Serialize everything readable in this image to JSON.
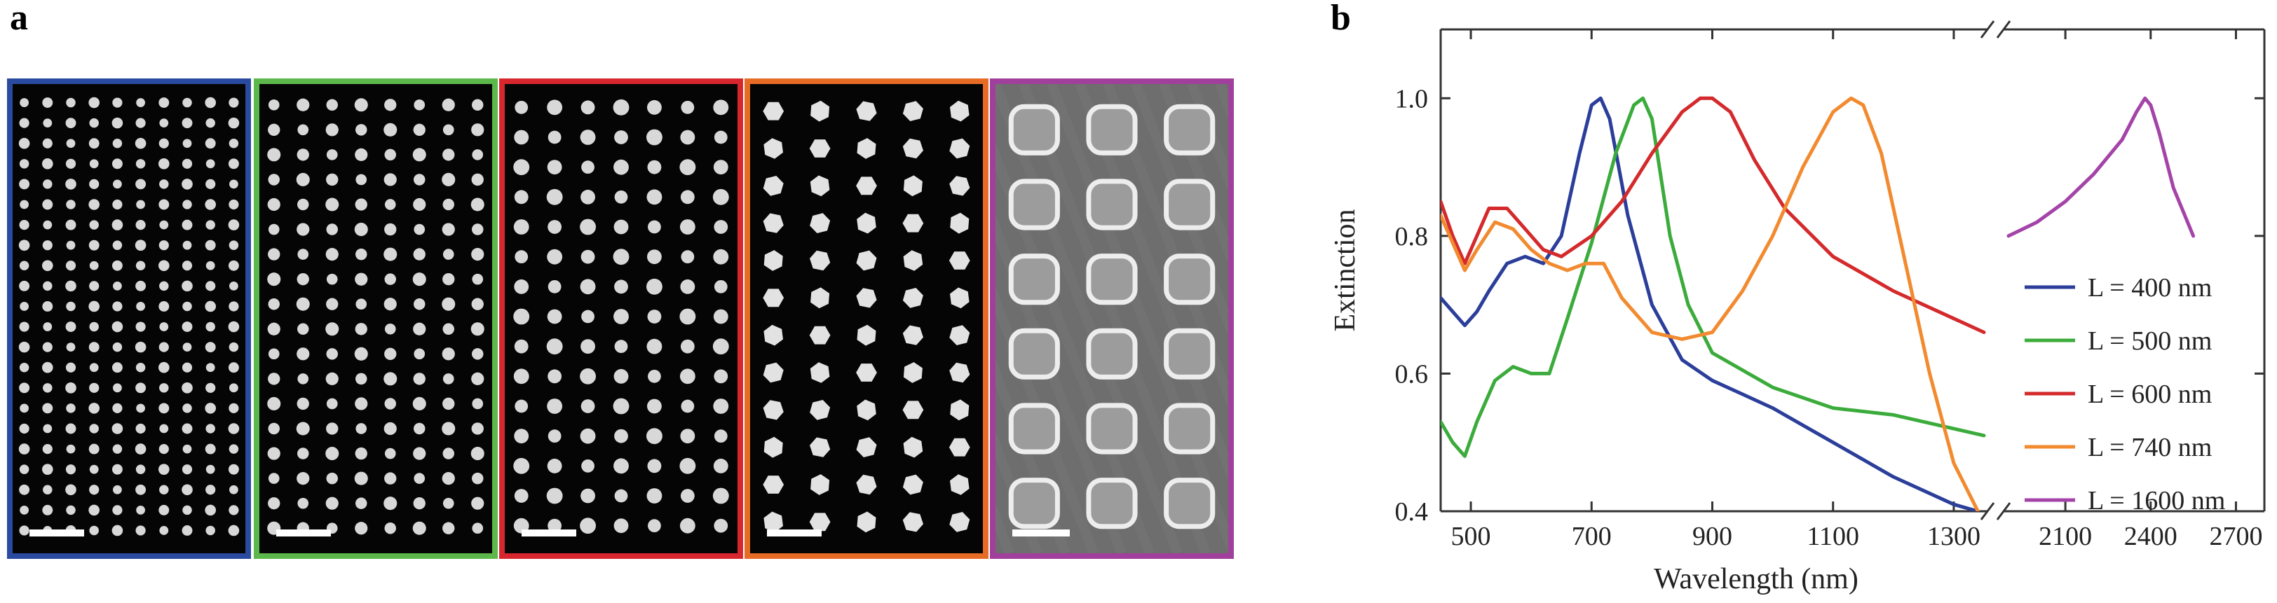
{
  "panel_labels": {
    "a": "a",
    "b": "b"
  },
  "sem_panels": [
    {
      "id": "L400",
      "border_color": "#2a4aa0",
      "rows": 22,
      "cols": 10,
      "particle_shape": "dot",
      "background": "black"
    },
    {
      "id": "L500",
      "border_color": "#5cb84a",
      "rows": 18,
      "cols": 8,
      "particle_shape": "dot",
      "background": "black"
    },
    {
      "id": "L600",
      "border_color": "#d8262e",
      "rows": 15,
      "cols": 7,
      "particle_shape": "dot",
      "background": "black"
    },
    {
      "id": "L740",
      "border_color": "#e66b25",
      "rows": 12,
      "cols": 5,
      "particle_shape": "hexagon",
      "background": "black"
    },
    {
      "id": "L1600",
      "border_color": "#a0409c",
      "rows": 6,
      "cols": 3,
      "particle_shape": "square",
      "background": "gray"
    }
  ],
  "chart_data": {
    "type": "line",
    "title": "",
    "xlabel": "Wavelength (nm)",
    "ylabel": "Extinction",
    "ylim": [
      0.4,
      1.1
    ],
    "yticks": [
      0.4,
      0.6,
      0.8,
      1.0
    ],
    "ytick_labels": [
      "0.4",
      "0.6",
      "0.8",
      "1.0"
    ],
    "x_axis_broken": true,
    "x_segments": [
      {
        "xlim": [
          450,
          1350
        ],
        "xticks": [
          500,
          700,
          900,
          1100,
          1300
        ]
      },
      {
        "xlim": [
          1900,
          2800
        ],
        "xticks": [
          2100,
          2400,
          2700
        ]
      }
    ],
    "xtick_labels": [
      "500",
      "700",
      "900",
      "1100",
      "1300",
      "2100",
      "2400",
      "2700"
    ],
    "legend_position": "right",
    "series": [
      {
        "name": "L = 400 nm",
        "color": "#2b3e9a",
        "segment": 0,
        "x": [
          450,
          470,
          490,
          510,
          530,
          560,
          590,
          620,
          650,
          680,
          700,
          715,
          730,
          760,
          800,
          850,
          900,
          950,
          1000,
          1100,
          1200,
          1300,
          1340
        ],
        "y": [
          0.71,
          0.69,
          0.67,
          0.69,
          0.72,
          0.76,
          0.77,
          0.76,
          0.8,
          0.92,
          0.99,
          1.0,
          0.97,
          0.83,
          0.7,
          0.62,
          0.59,
          0.57,
          0.55,
          0.5,
          0.45,
          0.41,
          0.4
        ]
      },
      {
        "name": "L = 500 nm",
        "color": "#3bab3b",
        "segment": 0,
        "x": [
          450,
          470,
          490,
          510,
          540,
          570,
          600,
          630,
          660,
          700,
          740,
          770,
          785,
          800,
          830,
          860,
          900,
          1000,
          1100,
          1200,
          1300,
          1350
        ],
        "y": [
          0.53,
          0.5,
          0.48,
          0.53,
          0.59,
          0.61,
          0.6,
          0.6,
          0.68,
          0.79,
          0.92,
          0.99,
          1.0,
          0.97,
          0.8,
          0.7,
          0.63,
          0.58,
          0.55,
          0.54,
          0.52,
          0.51
        ]
      },
      {
        "name": "L = 600 nm",
        "color": "#d42a2c",
        "segment": 0,
        "x": [
          450,
          470,
          490,
          510,
          530,
          560,
          590,
          620,
          650,
          700,
          750,
          800,
          850,
          880,
          900,
          930,
          970,
          1020,
          1100,
          1200,
          1300,
          1350
        ],
        "y": [
          0.85,
          0.8,
          0.76,
          0.8,
          0.84,
          0.84,
          0.81,
          0.78,
          0.77,
          0.8,
          0.85,
          0.92,
          0.98,
          1.0,
          1.0,
          0.98,
          0.91,
          0.84,
          0.77,
          0.72,
          0.68,
          0.66
        ]
      },
      {
        "name": "L = 740 nm",
        "color": "#f28a2f",
        "segment": 0,
        "x": [
          450,
          470,
          490,
          510,
          540,
          570,
          600,
          630,
          660,
          690,
          720,
          750,
          800,
          850,
          900,
          950,
          1000,
          1050,
          1100,
          1130,
          1150,
          1180,
          1220,
          1260,
          1300,
          1340
        ],
        "y": [
          0.83,
          0.79,
          0.75,
          0.78,
          0.82,
          0.81,
          0.78,
          0.76,
          0.75,
          0.76,
          0.76,
          0.71,
          0.66,
          0.65,
          0.66,
          0.72,
          0.8,
          0.9,
          0.98,
          1.0,
          0.99,
          0.92,
          0.76,
          0.6,
          0.47,
          0.4
        ]
      },
      {
        "name": "L = 1600 nm",
        "color": "#a443a8",
        "segment": 1,
        "x": [
          1900,
          2000,
          2100,
          2200,
          2300,
          2350,
          2380,
          2400,
          2430,
          2480,
          2550
        ],
        "y": [
          0.8,
          0.82,
          0.85,
          0.89,
          0.94,
          0.98,
          1.0,
          0.99,
          0.95,
          0.87,
          0.8
        ]
      }
    ]
  }
}
